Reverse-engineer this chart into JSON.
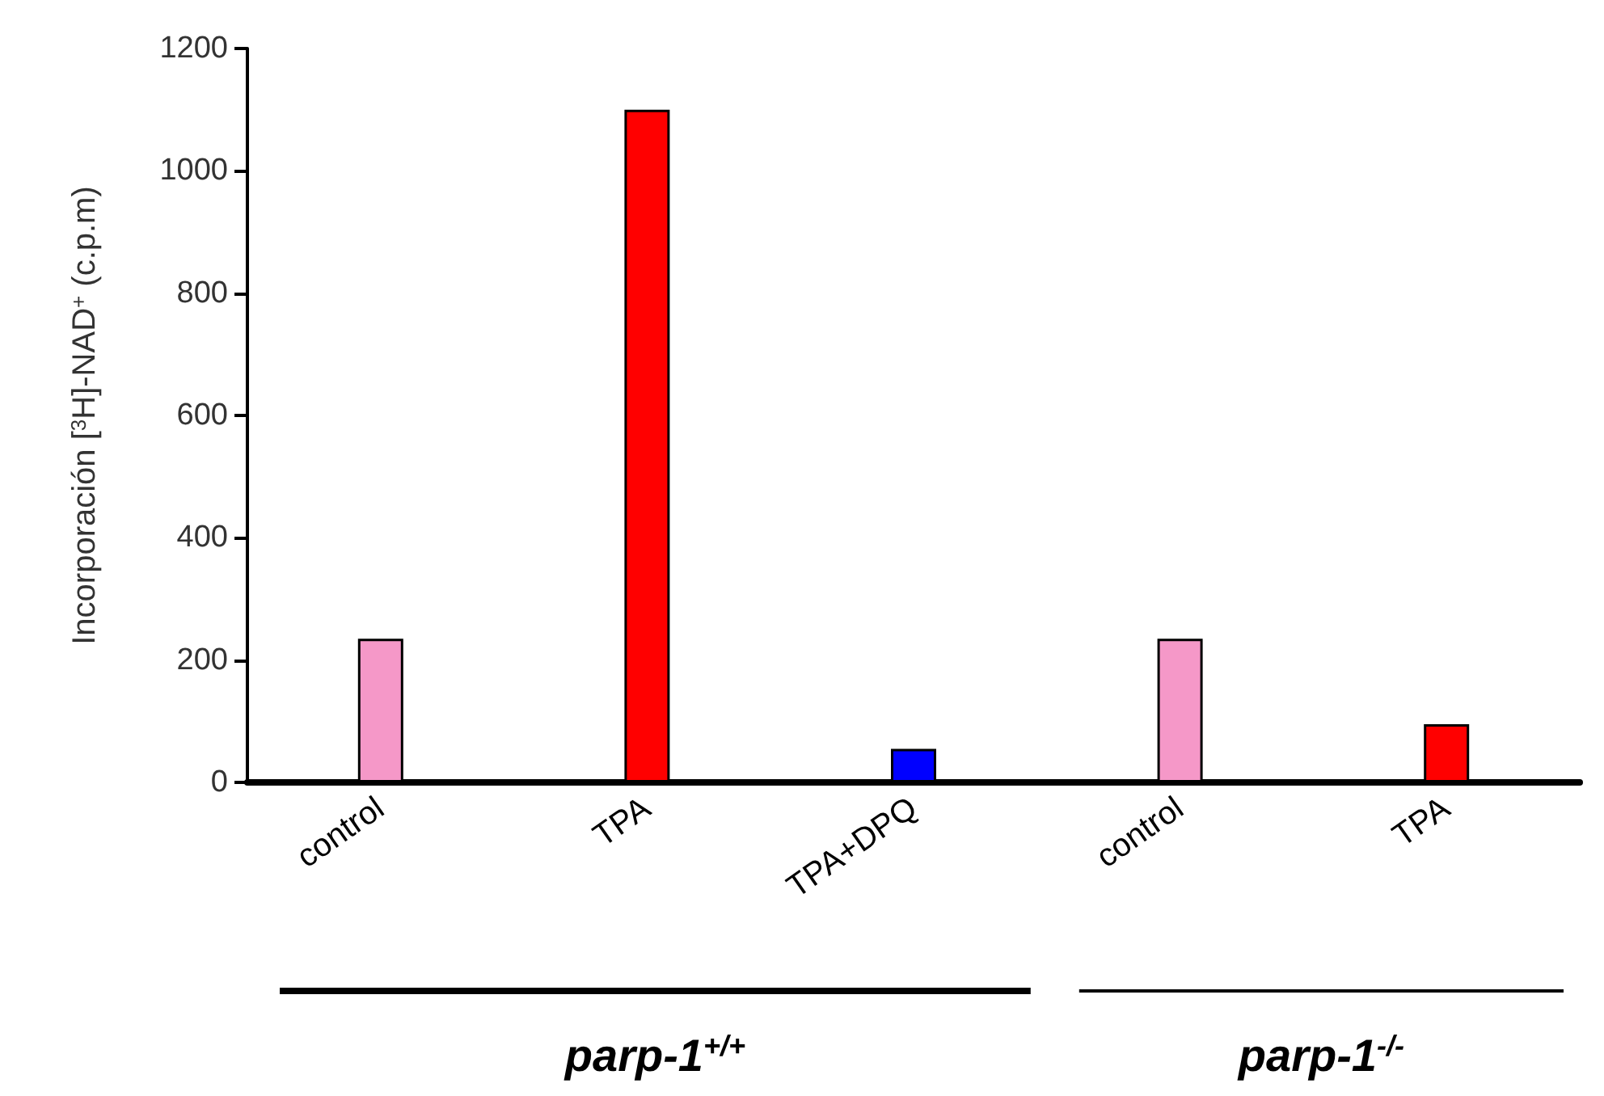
{
  "chart_data": {
    "type": "bar",
    "ylabel": "Incorporación [$^{3}$H]-NAD$^{+}$ (c.p.m)",
    "categories": [
      "control",
      "TPA",
      "TPA+DPQ",
      "control",
      "TPA"
    ],
    "values": [
      235,
      1100,
      55,
      235,
      95
    ],
    "colors": [
      "#f598c8",
      "#ff0000",
      "#0000ff",
      "#f598c8",
      "#ff0000"
    ],
    "ylim": [
      0,
      1200
    ],
    "yticks": [
      0,
      200,
      400,
      600,
      800,
      1000,
      1200
    ],
    "grid": false,
    "annotations": [
      "parp-1$^{+/+}$",
      "parp-1$^{-/-}$"
    ]
  }
}
